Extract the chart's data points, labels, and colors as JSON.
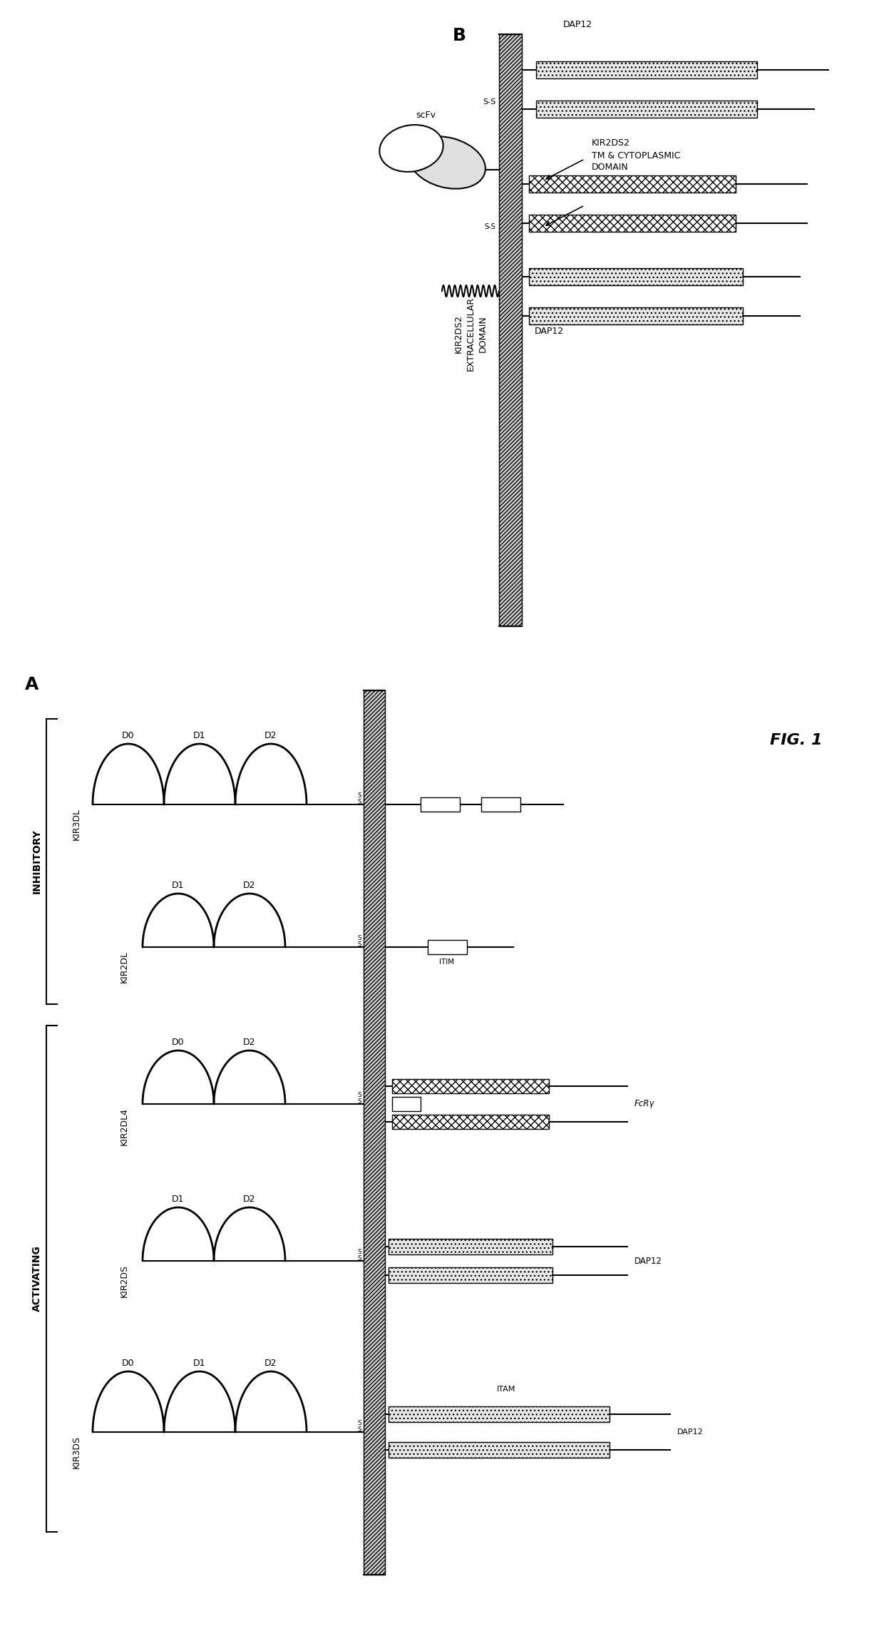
{
  "fig_width": 12.4,
  "fig_height": 23.08,
  "background_color": "#ffffff",
  "panel_a_label": "A",
  "panel_b_label": "B",
  "fig_label": "FIG. 1"
}
